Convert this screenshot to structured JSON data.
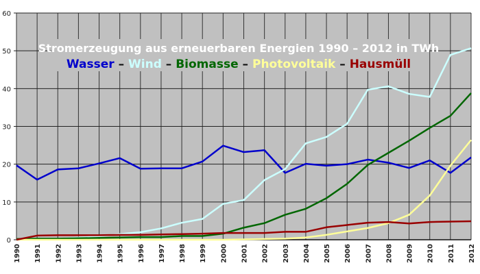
{
  "chart_data": {
    "type": "line",
    "title": "Stromerzeugung aus erneuerbaren Energien 1990 – 2012 in TWh",
    "xlabel": "",
    "ylabel": "",
    "ylim": [
      0,
      60
    ],
    "yticks": [
      0,
      10,
      20,
      30,
      40,
      50,
      60
    ],
    "grid": true,
    "legend_position": "top-center (inline under title)",
    "legend_separator": "–",
    "background_color": "#c0c0c0",
    "x": [
      "1990",
      "1991",
      "1992",
      "1993",
      "1994",
      "1995",
      "1996",
      "1997",
      "1998",
      "1999",
      "2000",
      "2001",
      "2002",
      "2003",
      "2004",
      "2005",
      "2006",
      "2007",
      "2008",
      "2009",
      "2010",
      "2011",
      "2012"
    ],
    "series": [
      {
        "name": "Wasser",
        "color": "#0000cc",
        "values": [
          19.7,
          15.9,
          18.6,
          18.9,
          20.2,
          21.6,
          18.8,
          18.9,
          18.9,
          20.7,
          24.9,
          23.2,
          23.7,
          17.7,
          20.1,
          19.6,
          20.0,
          21.2,
          20.4,
          19.0,
          21.0,
          17.7,
          21.8
        ]
      },
      {
        "name": "Wind",
        "color": "#ccffff",
        "values": [
          0.0,
          0.1,
          0.2,
          0.6,
          0.9,
          1.5,
          2.0,
          3.0,
          4.5,
          5.5,
          9.5,
          10.5,
          15.8,
          18.7,
          25.5,
          27.2,
          30.7,
          39.7,
          40.6,
          38.6,
          37.8,
          48.9,
          50.7
        ]
      },
      {
        "name": "Biomasse",
        "color": "#006600",
        "values": [
          0.2,
          0.3,
          0.3,
          0.4,
          0.5,
          0.6,
          0.7,
          0.7,
          1.0,
          1.0,
          1.6,
          3.2,
          4.4,
          6.6,
          8.2,
          11.0,
          14.8,
          19.8,
          23.0,
          26.2,
          29.6,
          32.8,
          38.8
        ]
      },
      {
        "name": "Photovoltaik",
        "color": "#ffff99",
        "values": [
          0.0,
          0.0,
          0.0,
          0.0,
          0.0,
          0.0,
          0.0,
          0.0,
          0.0,
          0.0,
          0.0,
          0.1,
          0.2,
          0.3,
          0.6,
          1.3,
          2.2,
          3.1,
          4.4,
          6.6,
          11.7,
          19.6,
          26.4
        ]
      },
      {
        "name": "Hausmüll",
        "color": "#990000",
        "values": [
          0.0,
          1.1,
          1.2,
          1.2,
          1.2,
          1.3,
          1.3,
          1.4,
          1.5,
          1.6,
          1.8,
          1.8,
          1.8,
          2.1,
          2.1,
          3.3,
          3.9,
          4.5,
          4.7,
          4.3,
          4.7,
          4.8,
          4.9
        ]
      }
    ]
  }
}
